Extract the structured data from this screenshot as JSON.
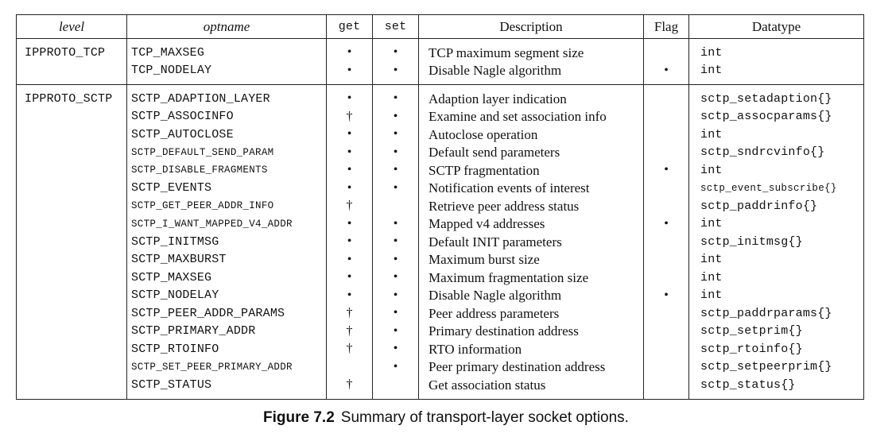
{
  "headers": {
    "level": "level",
    "optname": "optname",
    "get": "get",
    "set": "set",
    "description": "Description",
    "flag": "Flag",
    "datatype": "Datatype"
  },
  "rows": [
    {
      "level": "IPPROTO_TCP",
      "optname": "TCP_MAXSEG",
      "get": "•",
      "set": "•",
      "description": "TCP maximum segment size",
      "flag": "",
      "datatype": "int"
    },
    {
      "level": "",
      "optname": "TCP_NODELAY",
      "get": "•",
      "set": "•",
      "description": "Disable Nagle algorithm",
      "flag": "•",
      "datatype": "int"
    },
    {
      "level": "IPPROTO_SCTP",
      "optname": "SCTP_ADAPTION_LAYER",
      "get": "•",
      "set": "•",
      "description": "Adaption layer indication",
      "flag": "",
      "datatype": "sctp_setadaption{}"
    },
    {
      "level": "",
      "optname": "SCTP_ASSOCINFO",
      "get": "†",
      "set": "•",
      "description": "Examine and set association info",
      "flag": "",
      "datatype": "sctp_assocparams{}"
    },
    {
      "level": "",
      "optname": "SCTP_AUTOCLOSE",
      "get": "•",
      "set": "•",
      "description": "Autoclose operation",
      "flag": "",
      "datatype": "int"
    },
    {
      "level": "",
      "optname": "SCTP_DEFAULT_SEND_PARAM",
      "get": "•",
      "set": "•",
      "description": "Default send parameters",
      "flag": "",
      "datatype": "sctp_sndrcvinfo{}"
    },
    {
      "level": "",
      "optname": "SCTP_DISABLE_FRAGMENTS",
      "get": "•",
      "set": "•",
      "description": "SCTP fragmentation",
      "flag": "•",
      "datatype": "int"
    },
    {
      "level": "",
      "optname": "SCTP_EVENTS",
      "get": "•",
      "set": "•",
      "description": "Notification events of interest",
      "flag": "",
      "datatype": "sctp_event_subscribe{}"
    },
    {
      "level": "",
      "optname": "SCTP_GET_PEER_ADDR_INFO",
      "get": "†",
      "set": "",
      "description": "Retrieve peer address status",
      "flag": "",
      "datatype": "sctp_paddrinfo{}"
    },
    {
      "level": "",
      "optname": "SCTP_I_WANT_MAPPED_V4_ADDR",
      "get": "•",
      "set": "•",
      "description": "Mapped v4 addresses",
      "flag": "•",
      "datatype": "int"
    },
    {
      "level": "",
      "optname": "SCTP_INITMSG",
      "get": "•",
      "set": "•",
      "description": "Default INIT parameters",
      "flag": "",
      "datatype": "sctp_initmsg{}"
    },
    {
      "level": "",
      "optname": "SCTP_MAXBURST",
      "get": "•",
      "set": "•",
      "description": "Maximum burst size",
      "flag": "",
      "datatype": "int"
    },
    {
      "level": "",
      "optname": "SCTP_MAXSEG",
      "get": "•",
      "set": "•",
      "description": "Maximum fragmentation size",
      "flag": "",
      "datatype": "int"
    },
    {
      "level": "",
      "optname": "SCTP_NODELAY",
      "get": "•",
      "set": "•",
      "description": "Disable Nagle algorithm",
      "flag": "•",
      "datatype": "int"
    },
    {
      "level": "",
      "optname": "SCTP_PEER_ADDR_PARAMS",
      "get": "†",
      "set": "•",
      "description": "Peer address parameters",
      "flag": "",
      "datatype": "sctp_paddrparams{}"
    },
    {
      "level": "",
      "optname": "SCTP_PRIMARY_ADDR",
      "get": "†",
      "set": "•",
      "description": "Primary destination address",
      "flag": "",
      "datatype": "sctp_setprim{}"
    },
    {
      "level": "",
      "optname": "SCTP_RTOINFO",
      "get": "†",
      "set": "•",
      "description": "RTO information",
      "flag": "",
      "datatype": "sctp_rtoinfo{}"
    },
    {
      "level": "",
      "optname": "SCTP_SET_PEER_PRIMARY_ADDR",
      "get": "",
      "set": "•",
      "description": "Peer primary destination address",
      "flag": "",
      "datatype": "sctp_setpeerprim{}"
    },
    {
      "level": "",
      "optname": "SCTP_STATUS",
      "get": "†",
      "set": "",
      "description": "Get association status",
      "flag": "",
      "datatype": "sctp_status{}"
    }
  ],
  "caption": {
    "label": "Figure 7.2",
    "text": "Summary of transport-layer socket options."
  }
}
